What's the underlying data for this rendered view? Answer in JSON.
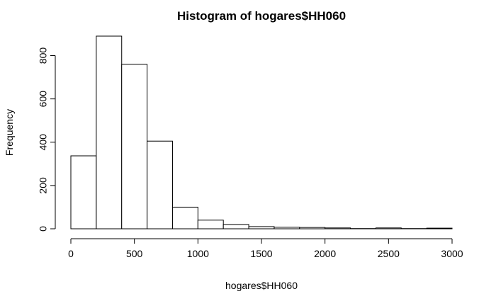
{
  "chart_data": {
    "type": "bar",
    "title": "Histogram of hogares$HH060",
    "xlabel": "hogares$HH060",
    "ylabel": "Frequency",
    "xlim": [
      0,
      3000
    ],
    "ylim": [
      0,
      890
    ],
    "bin_edges": [
      0,
      200,
      400,
      600,
      800,
      1000,
      1200,
      1400,
      1600,
      1800,
      2000,
      2200,
      2400,
      2600,
      2800,
      3000
    ],
    "values": [
      337,
      890,
      760,
      405,
      100,
      40,
      20,
      10,
      7,
      6,
      4,
      1,
      4,
      1,
      3
    ],
    "x_ticks": [
      0,
      500,
      1000,
      1500,
      2000,
      2500,
      3000
    ],
    "x_tick_labels": [
      "0",
      "500",
      "1000",
      "1500",
      "2000",
      "2500",
      "3000"
    ],
    "y_ticks": [
      0,
      200,
      400,
      600,
      800
    ],
    "y_tick_labels": [
      "0",
      "200",
      "400",
      "600",
      "800"
    ],
    "grid": false,
    "colors": {
      "bar_fill": "#ffffff",
      "bar_stroke": "#000000"
    }
  }
}
